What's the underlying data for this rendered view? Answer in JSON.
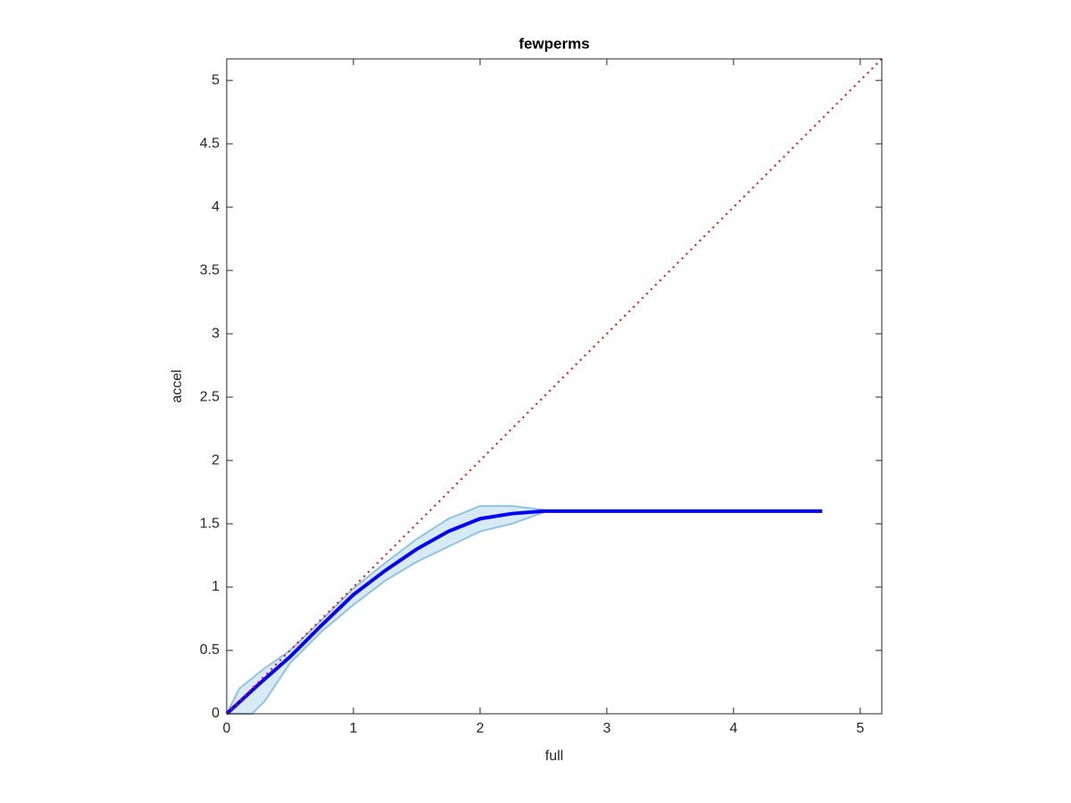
{
  "chart_data": {
    "type": "line",
    "title": "fewperms",
    "x_label": "full",
    "y_label": "accel",
    "xlim": [
      0,
      5.17
    ],
    "ylim": [
      0,
      5.17
    ],
    "xticks": [
      0,
      1,
      2,
      3,
      4,
      5
    ],
    "yticks": [
      0,
      0.5,
      1,
      1.5,
      2,
      2.5,
      3,
      3.5,
      4,
      4.5,
      5
    ],
    "grid": false,
    "series": [
      {
        "type": "band",
        "color": "#8ec3e3",
        "x": [
          0,
          0.1,
          0.2,
          0.3,
          0.5,
          0.75,
          1.0,
          1.25,
          1.5,
          1.75,
          2.0,
          2.25,
          2.5
        ],
        "upper": [
          0,
          0.2,
          0.28,
          0.36,
          0.5,
          0.74,
          0.99,
          1.19,
          1.38,
          1.54,
          1.64,
          1.64,
          1.61
        ],
        "lower": [
          0,
          0,
          0,
          0.1,
          0.4,
          0.65,
          0.86,
          1.05,
          1.2,
          1.32,
          1.44,
          1.5,
          1.59
        ]
      },
      {
        "type": "line",
        "color": "#0000ff",
        "style": "solid",
        "x": [
          0,
          0.25,
          0.5,
          0.75,
          1.0,
          1.25,
          1.5,
          1.75,
          2.0,
          2.25,
          2.5,
          3.0,
          3.5,
          4.0,
          4.7
        ],
        "values": [
          0,
          0.23,
          0.45,
          0.7,
          0.94,
          1.13,
          1.3,
          1.44,
          1.54,
          1.58,
          1.6,
          1.6,
          1.6,
          1.6,
          1.6
        ]
      },
      {
        "type": "line",
        "color": "#ff0000",
        "style": "dotted",
        "x": [
          0,
          5.17
        ],
        "values": [
          0,
          5.17
        ]
      }
    ]
  }
}
